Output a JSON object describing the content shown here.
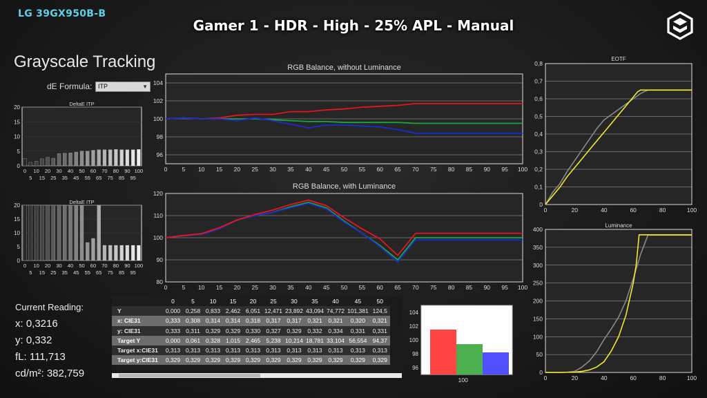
{
  "header": {
    "model": "LG 39GX950B-B",
    "title": "Gamer 1 - HDR - High - 25% APL - Manual",
    "section": "Grayscale Tracking"
  },
  "formula": {
    "label": "dE Formula:",
    "value": "ITP"
  },
  "reading": {
    "heading": "Current Reading:",
    "x": "x: 0,3216",
    "y": "y: 0,332",
    "fl": "fL: 111,713",
    "cdm": "cd/m²: 382,759"
  },
  "colors": {
    "red": "#e8141e",
    "green": "#18a83c",
    "blue": "#1a2bd0",
    "gray": "#8a8a8a",
    "yellow": "#f2ea2a",
    "cyan": "#5fd0e8"
  },
  "chart_data": [
    {
      "id": "deltaE1",
      "type": "bar",
      "title": "DeltaE ITP",
      "ylim": [
        0,
        20
      ],
      "yticks": [
        0,
        5,
        10,
        15,
        20
      ],
      "x": [
        0,
        5,
        10,
        15,
        20,
        25,
        30,
        35,
        40,
        45,
        50,
        55,
        60,
        65,
        70,
        75,
        80,
        85,
        90,
        95,
        100
      ],
      "xticks_row1": [
        "0",
        "10",
        "20",
        "30",
        "40",
        "50",
        "60",
        "70",
        "80",
        "90",
        "100"
      ],
      "xticks_row2": [
        "5",
        "15",
        "25",
        "35",
        "45",
        "55",
        "65",
        "75",
        "85",
        "95"
      ],
      "values": [
        2.4,
        1.2,
        1.6,
        2.4,
        2.9,
        2.6,
        4.2,
        4.3,
        4.4,
        4.7,
        5.0,
        5.0,
        5.3,
        5.5,
        5.5,
        5.5,
        5.6,
        5.5,
        5.5,
        5.5,
        5.6
      ]
    },
    {
      "id": "deltaE2",
      "type": "bar",
      "title": "DeltaE ITP",
      "ylim": [
        0,
        20
      ],
      "yticks": [
        0,
        5,
        10,
        15,
        20
      ],
      "x": [
        0,
        5,
        10,
        15,
        20,
        25,
        30,
        35,
        40,
        45,
        50,
        55,
        60,
        65,
        70,
        75,
        80,
        85,
        90,
        95,
        100
      ],
      "xticks_row1": [
        "0",
        "10",
        "20",
        "30",
        "40",
        "50",
        "60",
        "70",
        "80",
        "90",
        "100"
      ],
      "xticks_row2": [
        "5",
        "15",
        "25",
        "35",
        "45",
        "55",
        "65",
        "75",
        "85",
        "95"
      ],
      "values": [
        20,
        20,
        20,
        20,
        20,
        20,
        20,
        20,
        20,
        20,
        20,
        6.5,
        8.0,
        20,
        5.5,
        5.5,
        5.5,
        5.5,
        5.5,
        5.5,
        5.5
      ]
    },
    {
      "id": "rgbBalance",
      "type": "line",
      "title": "RGB Balance, without Luminance",
      "ylim": [
        95,
        105
      ],
      "yticks": [
        96,
        98,
        100,
        102,
        104
      ],
      "x": [
        0,
        5,
        10,
        15,
        20,
        25,
        30,
        35,
        40,
        45,
        50,
        55,
        60,
        65,
        70,
        75,
        80,
        85,
        90,
        95,
        100
      ],
      "series": [
        {
          "color": "red",
          "values": [
            100,
            100.1,
            100,
            100.1,
            100.4,
            100.5,
            100.5,
            100.8,
            100.8,
            101.0,
            101.1,
            101.3,
            101.4,
            101.5,
            101.7,
            101.7,
            101.7,
            101.7,
            101.7,
            101.7,
            101.7
          ]
        },
        {
          "color": "green",
          "values": [
            100,
            100.1,
            100,
            100,
            100,
            100,
            99.9,
            99.8,
            99.7,
            99.7,
            99.6,
            99.6,
            99.6,
            99.6,
            99.5,
            99.5,
            99.5,
            99.5,
            99.5,
            99.5,
            99.5
          ]
        },
        {
          "color": "blue",
          "values": [
            100,
            100.1,
            100,
            100,
            99.8,
            100.1,
            99.8,
            99.4,
            99.0,
            99.3,
            99.3,
            99.2,
            99.1,
            98.8,
            98.4,
            98.4,
            98.4,
            98.4,
            98.4,
            98.4,
            98.4
          ]
        }
      ]
    },
    {
      "id": "rgbLuma",
      "type": "line",
      "title": "RGB Balance, with Luminance",
      "ylim": [
        80,
        120
      ],
      "yticks": [
        80,
        90,
        100,
        110,
        120
      ],
      "x": [
        0,
        5,
        10,
        15,
        20,
        25,
        30,
        35,
        40,
        45,
        50,
        55,
        60,
        65,
        70,
        75,
        80,
        85,
        90,
        95,
        100
      ],
      "series": [
        {
          "color": "green",
          "values": [
            100,
            101,
            101.5,
            104,
            108,
            110,
            111.5,
            114,
            116,
            113.5,
            107.5,
            102,
            96.5,
            90,
            100,
            100,
            100,
            100,
            100,
            100,
            100
          ]
        },
        {
          "color": "blue",
          "values": [
            100,
            101,
            101.5,
            104,
            108,
            110,
            111.5,
            113.5,
            115.5,
            113,
            107,
            102,
            96,
            89,
            99,
            99,
            99,
            99,
            99,
            99,
            99
          ]
        },
        {
          "color": "red",
          "values": [
            100,
            101,
            101.8,
            104.5,
            108,
            110.5,
            112.5,
            115,
            117,
            114.5,
            109,
            104,
            99.5,
            92,
            102,
            102,
            102,
            102,
            102,
            102,
            102
          ]
        }
      ]
    },
    {
      "id": "eotf",
      "type": "line",
      "title": "EOTF",
      "ylim": [
        0,
        0.8
      ],
      "yticks": [
        "0",
        "0,1",
        "0,2",
        "0,3",
        "0,4",
        "0,5",
        "0,6",
        "0,7",
        "0,8"
      ],
      "xlim": [
        0,
        100
      ],
      "xticks": [
        0,
        20,
        40,
        60,
        80,
        100
      ],
      "series": [
        {
          "color": "gray",
          "x": [
            0,
            5,
            10,
            15,
            20,
            25,
            30,
            35,
            40,
            45,
            50,
            55,
            60,
            65,
            70,
            100
          ],
          "values": [
            0,
            0.07,
            0.12,
            0.19,
            0.25,
            0.31,
            0.37,
            0.43,
            0.48,
            0.51,
            0.54,
            0.57,
            0.6,
            0.63,
            0.65,
            0.65
          ]
        },
        {
          "color": "yellow",
          "x": [
            0,
            5,
            10,
            15,
            20,
            25,
            30,
            35,
            40,
            45,
            50,
            55,
            60,
            63,
            65,
            70,
            100
          ],
          "values": [
            0,
            0.05,
            0.1,
            0.16,
            0.21,
            0.26,
            0.31,
            0.36,
            0.41,
            0.46,
            0.51,
            0.56,
            0.61,
            0.64,
            0.65,
            0.65,
            0.65
          ]
        }
      ]
    },
    {
      "id": "luminance",
      "type": "line",
      "title": "Luminance",
      "ylim": [
        0,
        400
      ],
      "yticks": [
        0,
        50,
        100,
        150,
        200,
        250,
        300,
        350,
        400
      ],
      "xlim": [
        0,
        100
      ],
      "xticks": [
        0,
        20,
        40,
        60,
        80,
        100
      ],
      "series": [
        {
          "color": "gray",
          "x": [
            0,
            10,
            15,
            20,
            25,
            30,
            35,
            40,
            45,
            50,
            55,
            60,
            65,
            70,
            100
          ],
          "values": [
            0,
            0,
            0.5,
            3,
            15,
            32,
            58,
            92,
            122,
            155,
            200,
            262,
            330,
            384,
            384
          ]
        },
        {
          "color": "yellow",
          "x": [
            0,
            10,
            20,
            25,
            30,
            35,
            40,
            45,
            50,
            55,
            60,
            62,
            64,
            66,
            70,
            100
          ],
          "values": [
            0,
            0,
            1,
            3,
            7,
            15,
            30,
            60,
            100,
            160,
            250,
            300,
            385,
            385,
            385,
            385
          ]
        }
      ]
    },
    {
      "id": "rgbBars",
      "type": "bar",
      "title": "",
      "categories": [
        "100"
      ],
      "ylim": [
        95,
        105
      ],
      "yticks": [
        96,
        98,
        100,
        102,
        104
      ],
      "series": [
        {
          "color": "#ff4444",
          "values": [
            101.5
          ]
        },
        {
          "color": "#4caf50",
          "values": [
            99.4
          ]
        },
        {
          "color": "#5050ff",
          "values": [
            98.2
          ]
        }
      ]
    }
  ],
  "table": {
    "columns": [
      "0",
      "5",
      "10",
      "15",
      "20",
      "25",
      "30",
      "35",
      "40",
      "45",
      "50"
    ],
    "rows": [
      {
        "label": "Y",
        "values": [
          "0,000",
          "0,258",
          "0,833",
          "2,462",
          "6,051",
          "12,471",
          "23,892",
          "43,094",
          "74,772",
          "101,381",
          "124,5"
        ]
      },
      {
        "label": "x: CIE31",
        "values": [
          "0,333",
          "0,308",
          "0,314",
          "0,314",
          "0,318",
          "0,317",
          "0,317",
          "0,321",
          "0,321",
          "0,320",
          "0,321"
        ]
      },
      {
        "label": "y: CIE31",
        "values": [
          "0,333",
          "0,311",
          "0,329",
          "0,329",
          "0,330",
          "0,327",
          "0,329",
          "0,332",
          "0,334",
          "0,331",
          "0,331"
        ]
      },
      {
        "label": "Target Y",
        "values": [
          "0,000",
          "0,061",
          "0,328",
          "1,015",
          "2,465",
          "5,238",
          "10,214",
          "18,781",
          "33,104",
          "56,554",
          "94,37"
        ]
      },
      {
        "label": "Target x:CIE31",
        "values": [
          "0,313",
          "0,313",
          "0,313",
          "0,313",
          "0,313",
          "0,313",
          "0,313",
          "0,313",
          "0,313",
          "0,313",
          "0,313"
        ]
      },
      {
        "label": "Target y:CIE31",
        "values": [
          "0,329",
          "0,329",
          "0,329",
          "0,329",
          "0,329",
          "0,329",
          "0,329",
          "0,329",
          "0,329",
          "0,329",
          "0,329"
        ]
      }
    ]
  }
}
